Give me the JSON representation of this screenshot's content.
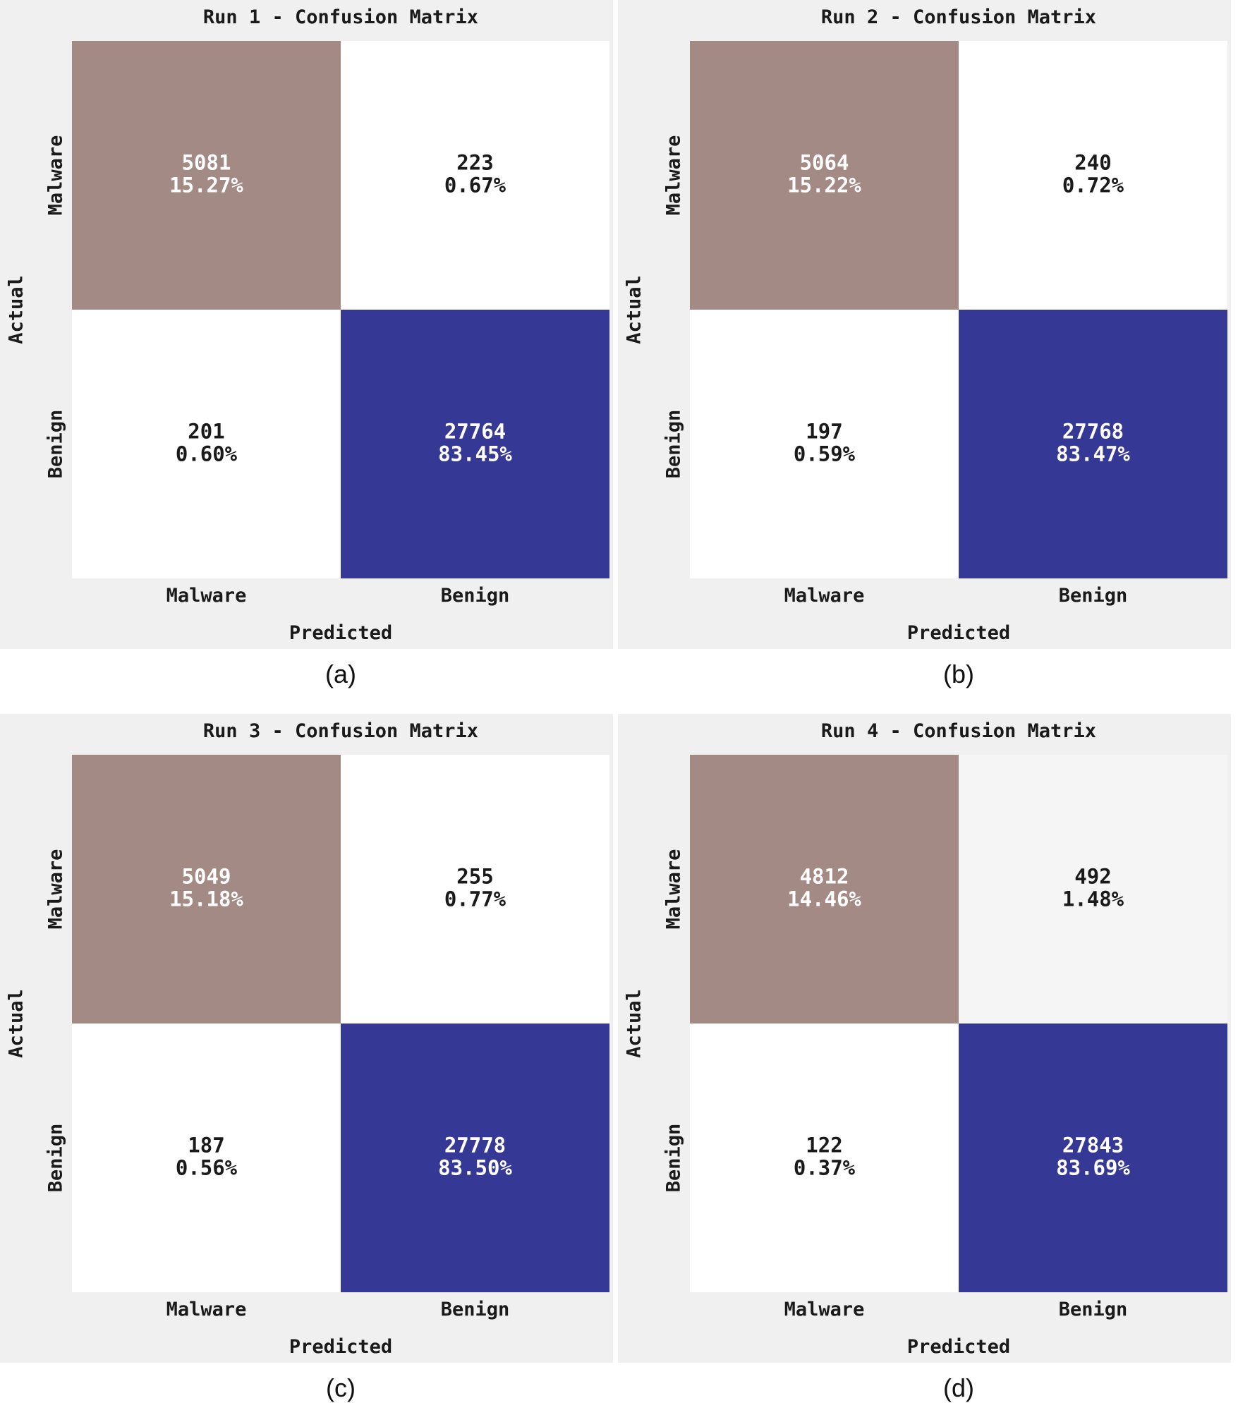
{
  "colors": {
    "panel_background": "#f0f0f0",
    "true_malware_cell": "#a48a84",
    "true_benign_cell": "#363896",
    "off_diagonal_cell": "#ffffff",
    "off_diagonal_cell_light_gray": "#f6f5f5",
    "dark_cell_text": "#ffffff",
    "light_cell_text": "#1a1a1a"
  },
  "chart_data": [
    {
      "type": "heatmap",
      "panel_caption": "(a)",
      "title": "Run 1 - Confusion Matrix",
      "xlabel": "Predicted",
      "ylabel": "Actual",
      "x_categories": [
        "Malware",
        "Benign"
      ],
      "y_categories": [
        "Malware",
        "Benign"
      ],
      "values": [
        [
          5081,
          223
        ],
        [
          201,
          27764
        ]
      ],
      "percentages": [
        [
          "15.27%",
          "0.67%"
        ],
        [
          "0.60%",
          "83.45%"
        ]
      ],
      "cell_labels": [
        [
          "5081",
          "223"
        ],
        [
          "201",
          "27764"
        ]
      ]
    },
    {
      "type": "heatmap",
      "panel_caption": "(b)",
      "title": "Run 2 - Confusion Matrix",
      "xlabel": "Predicted",
      "ylabel": "Actual",
      "x_categories": [
        "Malware",
        "Benign"
      ],
      "y_categories": [
        "Malware",
        "Benign"
      ],
      "values": [
        [
          5064,
          240
        ],
        [
          197,
          27768
        ]
      ],
      "percentages": [
        [
          "15.22%",
          "0.72%"
        ],
        [
          "0.59%",
          "83.47%"
        ]
      ],
      "cell_labels": [
        [
          "5064",
          "240"
        ],
        [
          "197",
          "27768"
        ]
      ]
    },
    {
      "type": "heatmap",
      "panel_caption": "(c)",
      "title": "Run 3 - Confusion Matrix",
      "xlabel": "Predicted",
      "ylabel": "Actual",
      "x_categories": [
        "Malware",
        "Benign"
      ],
      "y_categories": [
        "Malware",
        "Benign"
      ],
      "values": [
        [
          5049,
          255
        ],
        [
          187,
          27778
        ]
      ],
      "percentages": [
        [
          "15.18%",
          "0.77%"
        ],
        [
          "0.56%",
          "83.50%"
        ]
      ],
      "cell_labels": [
        [
          "5049",
          "255"
        ],
        [
          "187",
          "27778"
        ]
      ]
    },
    {
      "type": "heatmap",
      "panel_caption": "(d)",
      "title": "Run 4 - Confusion Matrix",
      "xlabel": "Predicted",
      "ylabel": "Actual",
      "x_categories": [
        "Malware",
        "Benign"
      ],
      "y_categories": [
        "Malware",
        "Benign"
      ],
      "values": [
        [
          4812,
          492
        ],
        [
          122,
          27843
        ]
      ],
      "percentages": [
        [
          "14.46%",
          "1.48%"
        ],
        [
          "0.37%",
          "83.69%"
        ]
      ],
      "cell_labels": [
        [
          "4812",
          "492"
        ],
        [
          "122",
          "27843"
        ]
      ]
    }
  ]
}
